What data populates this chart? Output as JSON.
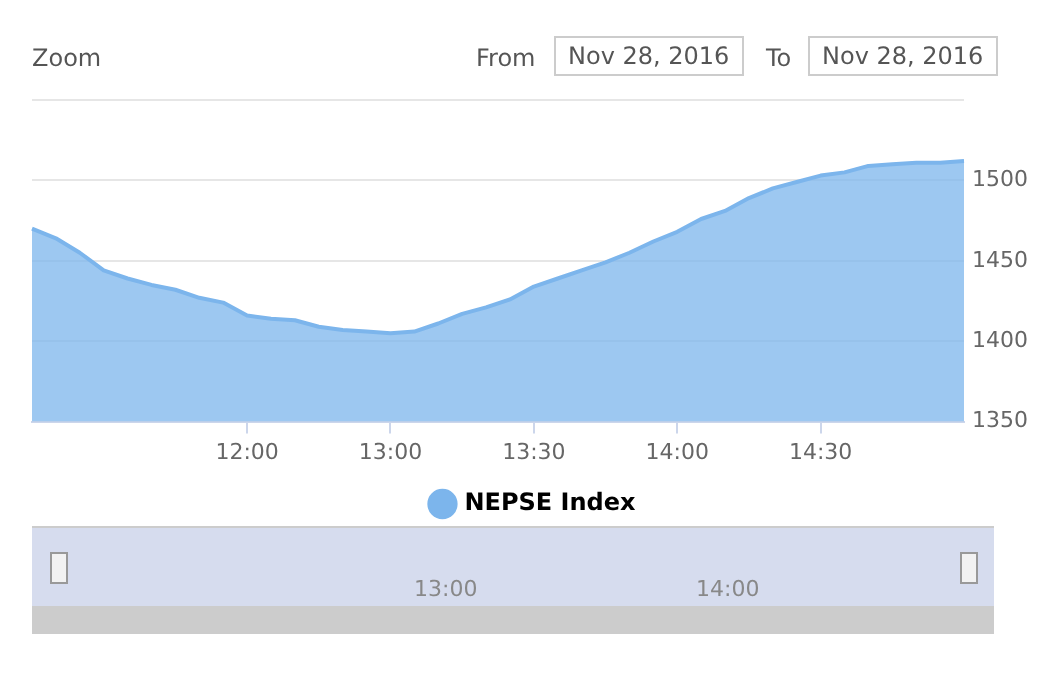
{
  "chart_data": {
    "type": "area",
    "categories": [
      null,
      null,
      null,
      null,
      null,
      null,
      null,
      null,
      null,
      "12:00",
      null,
      null,
      null,
      null,
      null,
      "13:00",
      null,
      null,
      null,
      null,
      null,
      "13:30",
      null,
      null,
      null,
      null,
      null,
      "14:00",
      null,
      null,
      null,
      null,
      null,
      "14:30",
      null,
      null,
      null,
      null,
      null,
      null
    ],
    "series": [
      {
        "name": "NEPSE Index",
        "color": "#7cb5ec",
        "values": [
          1470,
          1464,
          1455,
          1444,
          1439,
          1435,
          1432,
          1427,
          1424,
          1416,
          1414,
          1413,
          1409,
          1407,
          1406,
          1405,
          1406,
          1411,
          1417,
          1421,
          1426,
          1434,
          1439,
          1444,
          1449,
          1455,
          1462,
          1468,
          1476,
          1481,
          1489,
          1495,
          1499,
          1503,
          1505,
          1509,
          1510,
          1511,
          1511,
          1512
        ]
      }
    ],
    "ylim": [
      1350,
      1550
    ],
    "yticks": [
      1350,
      1400,
      1450,
      1500,
      {
        "value": 1550,
        "label": null
      }
    ],
    "grid": "y",
    "legend": "bottom",
    "marker": "none",
    "annotations": [
      "Zoom",
      "From",
      "Nov 28, 2016",
      "To",
      "Nov 28, 2016",
      "13:00",
      "14:00"
    ]
  }
}
